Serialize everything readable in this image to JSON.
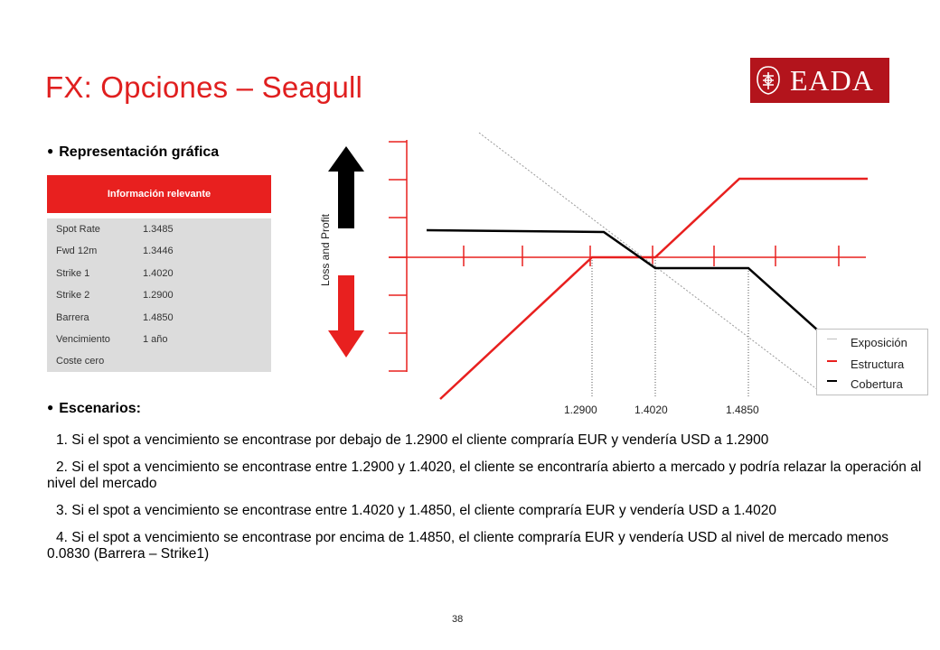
{
  "title": "FX: Opciones – Seagull",
  "logo": {
    "text": "EADA"
  },
  "section_chart": "Representación gráfica",
  "section_scenarios": "Escenarios:",
  "info_table": {
    "header": "Información relevante",
    "rows": [
      {
        "label": "Spot Rate",
        "value": "1.3485"
      },
      {
        "label": "Fwd 12m",
        "value": "1.3446"
      },
      {
        "label": "Strike 1",
        "value": "1.4020"
      },
      {
        "label": "Strike 2",
        "value": "1.2900"
      },
      {
        "label": "Barrera",
        "value": "1.4850"
      },
      {
        "label": "Vencimiento",
        "value": "1 año"
      },
      {
        "label": "Coste cero",
        "value": ""
      }
    ]
  },
  "chart": {
    "ylabel": "Loss  and Profit",
    "x_labels": [
      "1.2900",
      "1.4020",
      "1.4850"
    ],
    "legend": [
      {
        "label": "Exposición",
        "color": "#bfbfbf"
      },
      {
        "label": "Estructura",
        "color": "#e8201f"
      },
      {
        "label": "Cobertura",
        "color": "#000000"
      }
    ]
  },
  "chart_data": {
    "type": "line",
    "ylabel": "Loss  and Profit",
    "x_tick_labels": [
      "1.2900",
      "1.4020",
      "1.4850"
    ],
    "x_markers": [
      1.29,
      1.402,
      1.485
    ],
    "series": [
      {
        "name": "Exposición",
        "style": "dotted",
        "color": "#bfbfbf",
        "points": [
          [
            1.2,
            5
          ],
          [
            1.29,
            2.4
          ],
          [
            1.402,
            -0.4
          ],
          [
            1.485,
            -2.5
          ],
          [
            1.6,
            -5
          ]
        ]
      },
      {
        "name": "Estructura",
        "style": "solid",
        "color": "#e8201f",
        "points": [
          [
            1.2,
            -5
          ],
          [
            1.29,
            0
          ],
          [
            1.402,
            0
          ],
          [
            1.485,
            2.4
          ],
          [
            1.6,
            2.4
          ]
        ]
      },
      {
        "name": "Cobertura",
        "style": "solid",
        "color": "#000000",
        "points": [
          [
            1.2,
            0.75
          ],
          [
            1.29,
            0.7
          ],
          [
            1.402,
            -0.3
          ],
          [
            1.485,
            -0.3
          ],
          [
            1.55,
            -1.8
          ]
        ]
      }
    ]
  },
  "scenarios": [
    "1. Si el spot a vencimiento se encontrase por debajo de 1.2900 el cliente compraría EUR y vendería USD a 1.2900",
    "2. Si el spot a vencimiento se encontrase entre 1.2900 y 1.4020, el cliente se encontraría abierto a mercado y podría relazar la operación al nivel del mercado",
    "3. Si el spot a vencimiento se encontrase entre 1.4020 y 1.4850, el cliente compraría EUR y vendería USD a 1.4020",
    "4. Si el spot a vencimiento se encontrase por encima de 1.4850, el cliente compraría EUR y vendería USD al nivel de mercado menos 0.0830 (Barrera – Strike1)"
  ],
  "page_number": "38"
}
